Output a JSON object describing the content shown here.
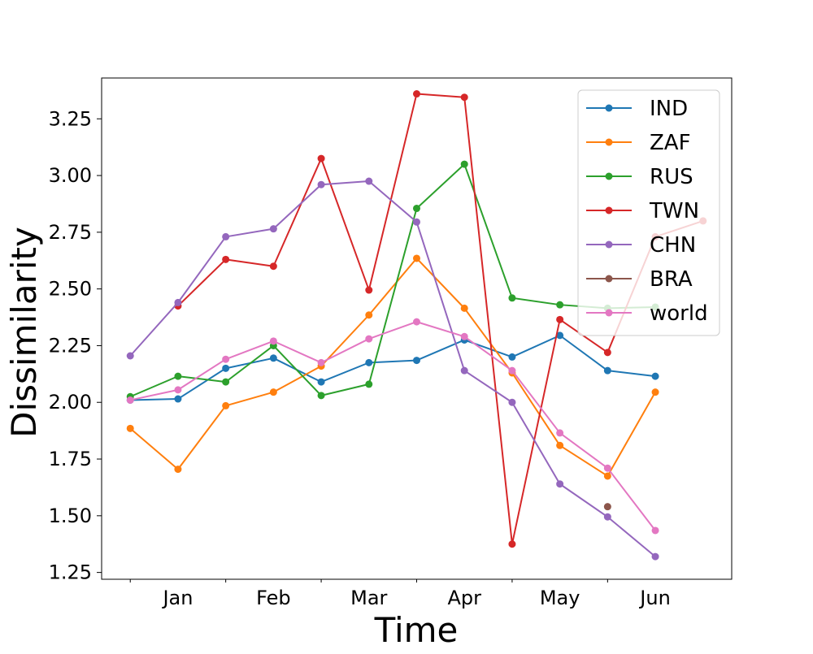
{
  "chart_data": {
    "type": "line",
    "xlabel": "Time",
    "ylabel": "Dissimilarity",
    "x": [
      0,
      1,
      2,
      3,
      4,
      5,
      6,
      7,
      8,
      9,
      10,
      11,
      12
    ],
    "xticks": [
      1,
      3,
      5,
      7,
      9,
      11
    ],
    "xtick_labels": [
      "Jan",
      "Feb",
      "Mar",
      "Apr",
      "May",
      "Jun"
    ],
    "xminor_ticks": [
      0,
      2,
      4,
      6,
      8,
      10
    ],
    "xlim": [
      -0.6,
      12.6
    ],
    "ylim": [
      1.22,
      3.43
    ],
    "yticks": [
      1.25,
      1.5,
      1.75,
      2.0,
      2.25,
      2.5,
      2.75,
      3.0,
      3.25
    ],
    "ytick_labels": [
      "1.25",
      "1.50",
      "1.75",
      "2.00",
      "2.25",
      "2.50",
      "2.75",
      "3.00",
      "3.25"
    ],
    "grid": false,
    "legend_position": "top-right",
    "series": [
      {
        "name": "IND",
        "color": "#1f77b4",
        "values": [
          2.01,
          2.015,
          2.15,
          2.195,
          2.09,
          2.175,
          2.185,
          2.275,
          2.2,
          2.295,
          2.14,
          2.115,
          null
        ]
      },
      {
        "name": "ZAF",
        "color": "#ff7f0e",
        "values": [
          1.885,
          1.705,
          1.985,
          2.045,
          2.16,
          2.385,
          2.635,
          2.415,
          2.13,
          1.81,
          1.675,
          2.045,
          null
        ]
      },
      {
        "name": "RUS",
        "color": "#2ca02c",
        "values": [
          2.025,
          2.115,
          2.09,
          2.25,
          2.03,
          2.08,
          2.855,
          3.05,
          2.46,
          2.43,
          2.415,
          2.42,
          null
        ]
      },
      {
        "name": "TWN",
        "color": "#d62728",
        "values": [
          null,
          2.425,
          2.63,
          2.6,
          3.075,
          2.495,
          3.36,
          3.345,
          1.375,
          2.365,
          2.22,
          2.73,
          2.8
        ]
      },
      {
        "name": "CHN",
        "color": "#9467bd",
        "values": [
          2.205,
          2.44,
          2.73,
          2.765,
          2.96,
          2.975,
          2.795,
          2.14,
          2.0,
          1.64,
          1.495,
          1.32,
          null
        ]
      },
      {
        "name": "BRA",
        "color": "#8c564b",
        "values": [
          null,
          null,
          null,
          null,
          null,
          null,
          null,
          null,
          null,
          null,
          1.54,
          null,
          null
        ]
      },
      {
        "name": "world",
        "color": "#e377c2",
        "values": [
          2.01,
          2.055,
          2.19,
          2.27,
          2.175,
          2.28,
          2.355,
          2.29,
          2.14,
          1.865,
          1.71,
          1.435,
          null
        ]
      }
    ]
  }
}
